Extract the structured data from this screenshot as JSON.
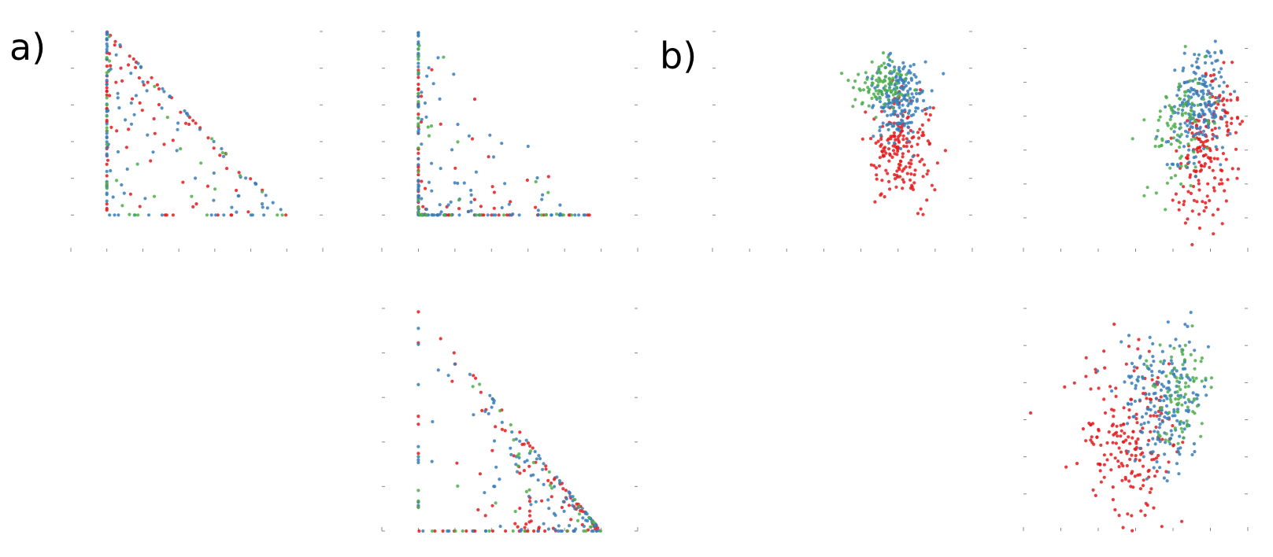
{
  "figure": {
    "panel_labels": [
      "a)",
      "b)"
    ]
  },
  "colors": {
    "red": "#e41a1c",
    "blue": "#377eb8",
    "green": "#4daf4a"
  },
  "chart_data": [
    {
      "id": "a-top-left",
      "type": "scatter",
      "group": "a)",
      "title": "",
      "xlabel": "",
      "ylabel": "",
      "xlim": [
        -1,
        6
      ],
      "ylim": [
        -1,
        5
      ],
      "ticks_x": [
        0,
        1,
        2,
        3,
        4,
        5
      ],
      "ticks_y": [
        0,
        1,
        2,
        3,
        4,
        5
      ],
      "shape": "triangle_bottom_left",
      "series": [
        {
          "color_key": "red",
          "count": 90,
          "seed": 11
        },
        {
          "color_key": "blue",
          "count": 110,
          "seed": 12
        },
        {
          "color_key": "green",
          "count": 35,
          "seed": 13
        }
      ]
    },
    {
      "id": "a-top-right",
      "type": "scatter",
      "group": "a)",
      "title": "",
      "xlabel": "",
      "ylabel": "",
      "xlim": [
        -1,
        6
      ],
      "ylim": [
        -1,
        5
      ],
      "ticks_x": [
        0,
        1,
        2,
        3,
        4,
        5
      ],
      "ticks_y": [
        0,
        1,
        2,
        3,
        4,
        5
      ],
      "shape": "triangle_bottom_left_sparse",
      "series": [
        {
          "color_key": "red",
          "count": 80,
          "seed": 21
        },
        {
          "color_key": "blue",
          "count": 130,
          "seed": 22
        },
        {
          "color_key": "green",
          "count": 40,
          "seed": 23
        }
      ]
    },
    {
      "id": "a-bottom",
      "type": "scatter",
      "group": "a)",
      "title": "",
      "xlabel": "",
      "ylabel": "",
      "xlim": [
        -1,
        6
      ],
      "ylim": [
        0,
        5
      ],
      "ticks_x": [
        0,
        1,
        2,
        3,
        4,
        5
      ],
      "ticks_y": [
        0,
        1,
        2,
        3,
        4,
        5
      ],
      "shape": "triangle_hypotenuse",
      "series": [
        {
          "color_key": "red",
          "count": 110,
          "seed": 31
        },
        {
          "color_key": "blue",
          "count": 120,
          "seed": 32
        },
        {
          "color_key": "green",
          "count": 40,
          "seed": 33
        }
      ]
    },
    {
      "id": "b-top-left",
      "type": "scatter",
      "group": "b)",
      "title": "",
      "xlabel": "",
      "ylabel": "",
      "xlim": [
        -5,
        2
      ],
      "ylim": [
        -1,
        5
      ],
      "ticks_x": [
        -5,
        -4,
        -3,
        -2,
        -1,
        0,
        1,
        2
      ],
      "ticks_y": [
        0,
        1,
        2,
        3,
        4,
        5
      ],
      "shape": "clusters",
      "series": [
        {
          "color_key": "red",
          "count": 180,
          "seed": 41,
          "center": [
            0.1,
            1.8
          ],
          "spread": [
            0.45,
            0.7
          ]
        },
        {
          "color_key": "blue",
          "count": 200,
          "seed": 42,
          "center": [
            0.0,
            3.2
          ],
          "spread": [
            0.35,
            0.6
          ]
        },
        {
          "color_key": "green",
          "count": 90,
          "seed": 43,
          "center": [
            -0.5,
            3.6
          ],
          "spread": [
            0.45,
            0.35
          ]
        }
      ]
    },
    {
      "id": "b-top-right",
      "type": "scatter",
      "group": "b)",
      "title": "",
      "xlabel": "",
      "ylabel": "",
      "xlim": [
        -5,
        1
      ],
      "ylim": [
        -1,
        5.5
      ],
      "ticks_x": [
        -5,
        -4,
        -3,
        -2,
        -1,
        0,
        1
      ],
      "ticks_y": [
        0,
        1,
        2,
        3,
        4,
        5
      ],
      "shape": "clusters_tilted",
      "series": [
        {
          "color_key": "red",
          "count": 180,
          "seed": 51,
          "center": [
            -0.1,
            2.0
          ],
          "spread": [
            0.4,
            1.2
          ]
        },
        {
          "color_key": "blue",
          "count": 200,
          "seed": 52,
          "center": [
            -0.3,
            3.4
          ],
          "spread": [
            0.35,
            0.9
          ]
        },
        {
          "color_key": "green",
          "count": 90,
          "seed": 53,
          "center": [
            -0.8,
            2.8
          ],
          "spread": [
            0.45,
            0.9
          ]
        }
      ]
    },
    {
      "id": "b-bottom",
      "type": "scatter",
      "group": "b)",
      "title": "",
      "xlabel": "",
      "ylabel": "",
      "xlim": [
        -5,
        1
      ],
      "ylim": [
        -1,
        5
      ],
      "ticks_x": [
        -5,
        -4,
        -3,
        -2,
        -1,
        0,
        1
      ],
      "ticks_y": [
        0,
        1,
        2,
        3,
        4,
        5
      ],
      "shape": "clusters",
      "series": [
        {
          "color_key": "red",
          "count": 200,
          "seed": 61,
          "center": [
            -2.2,
            1.6
          ],
          "spread": [
            0.65,
            1.2
          ]
        },
        {
          "color_key": "blue",
          "count": 200,
          "seed": 62,
          "center": [
            -1.3,
            2.6
          ],
          "spread": [
            0.55,
            0.95
          ]
        },
        {
          "color_key": "green",
          "count": 80,
          "seed": 63,
          "center": [
            -0.8,
            2.8
          ],
          "spread": [
            0.35,
            0.8
          ]
        }
      ]
    }
  ]
}
